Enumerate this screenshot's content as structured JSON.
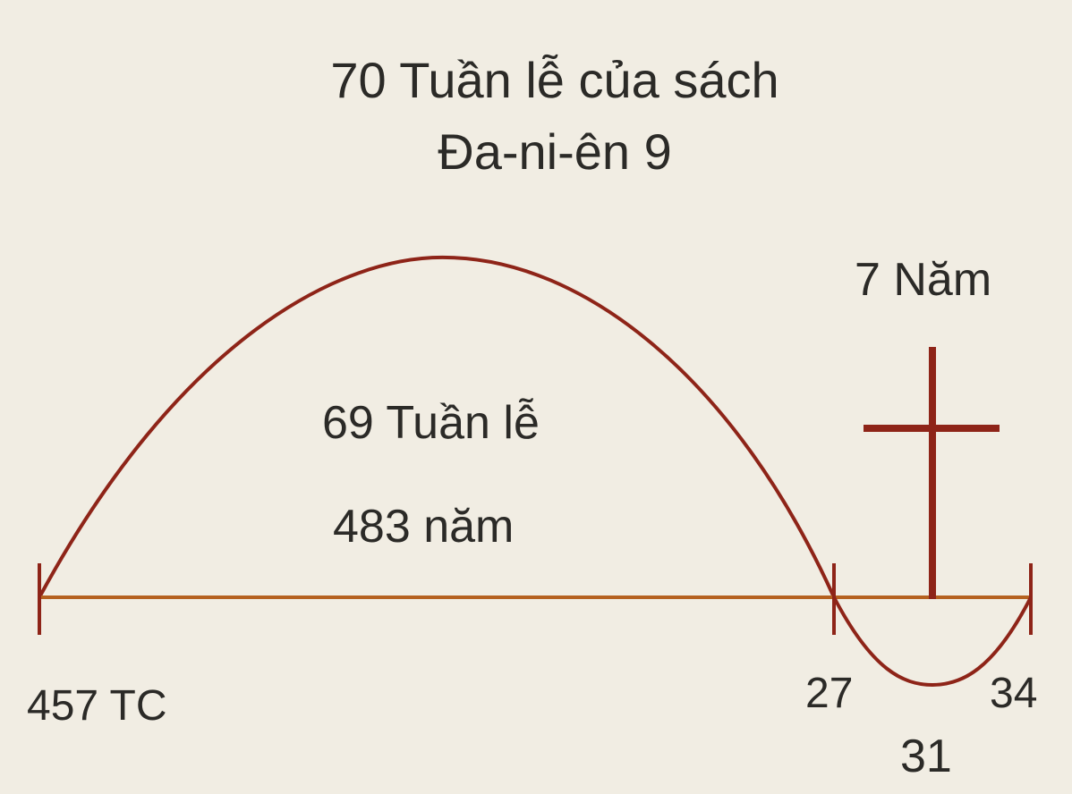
{
  "title": {
    "line1": "70 Tuần lễ của sách",
    "line2": "Đa-ni-ên 9"
  },
  "big_arc": {
    "weeks_label": "69 Tuần lễ",
    "years_label": "483 năm"
  },
  "small_arc": {
    "years_label": "7 Năm"
  },
  "timeline": {
    "start_label": "457 TC",
    "mid_label": "27",
    "end_label": "34",
    "cross_label": "31"
  },
  "colors": {
    "background": "#f1ede3",
    "arc": "#8e2418",
    "timeline": "#b5611f",
    "cross": "#8e2418",
    "text": "#2b2a27"
  },
  "icons": {
    "cross": "cross-icon"
  }
}
